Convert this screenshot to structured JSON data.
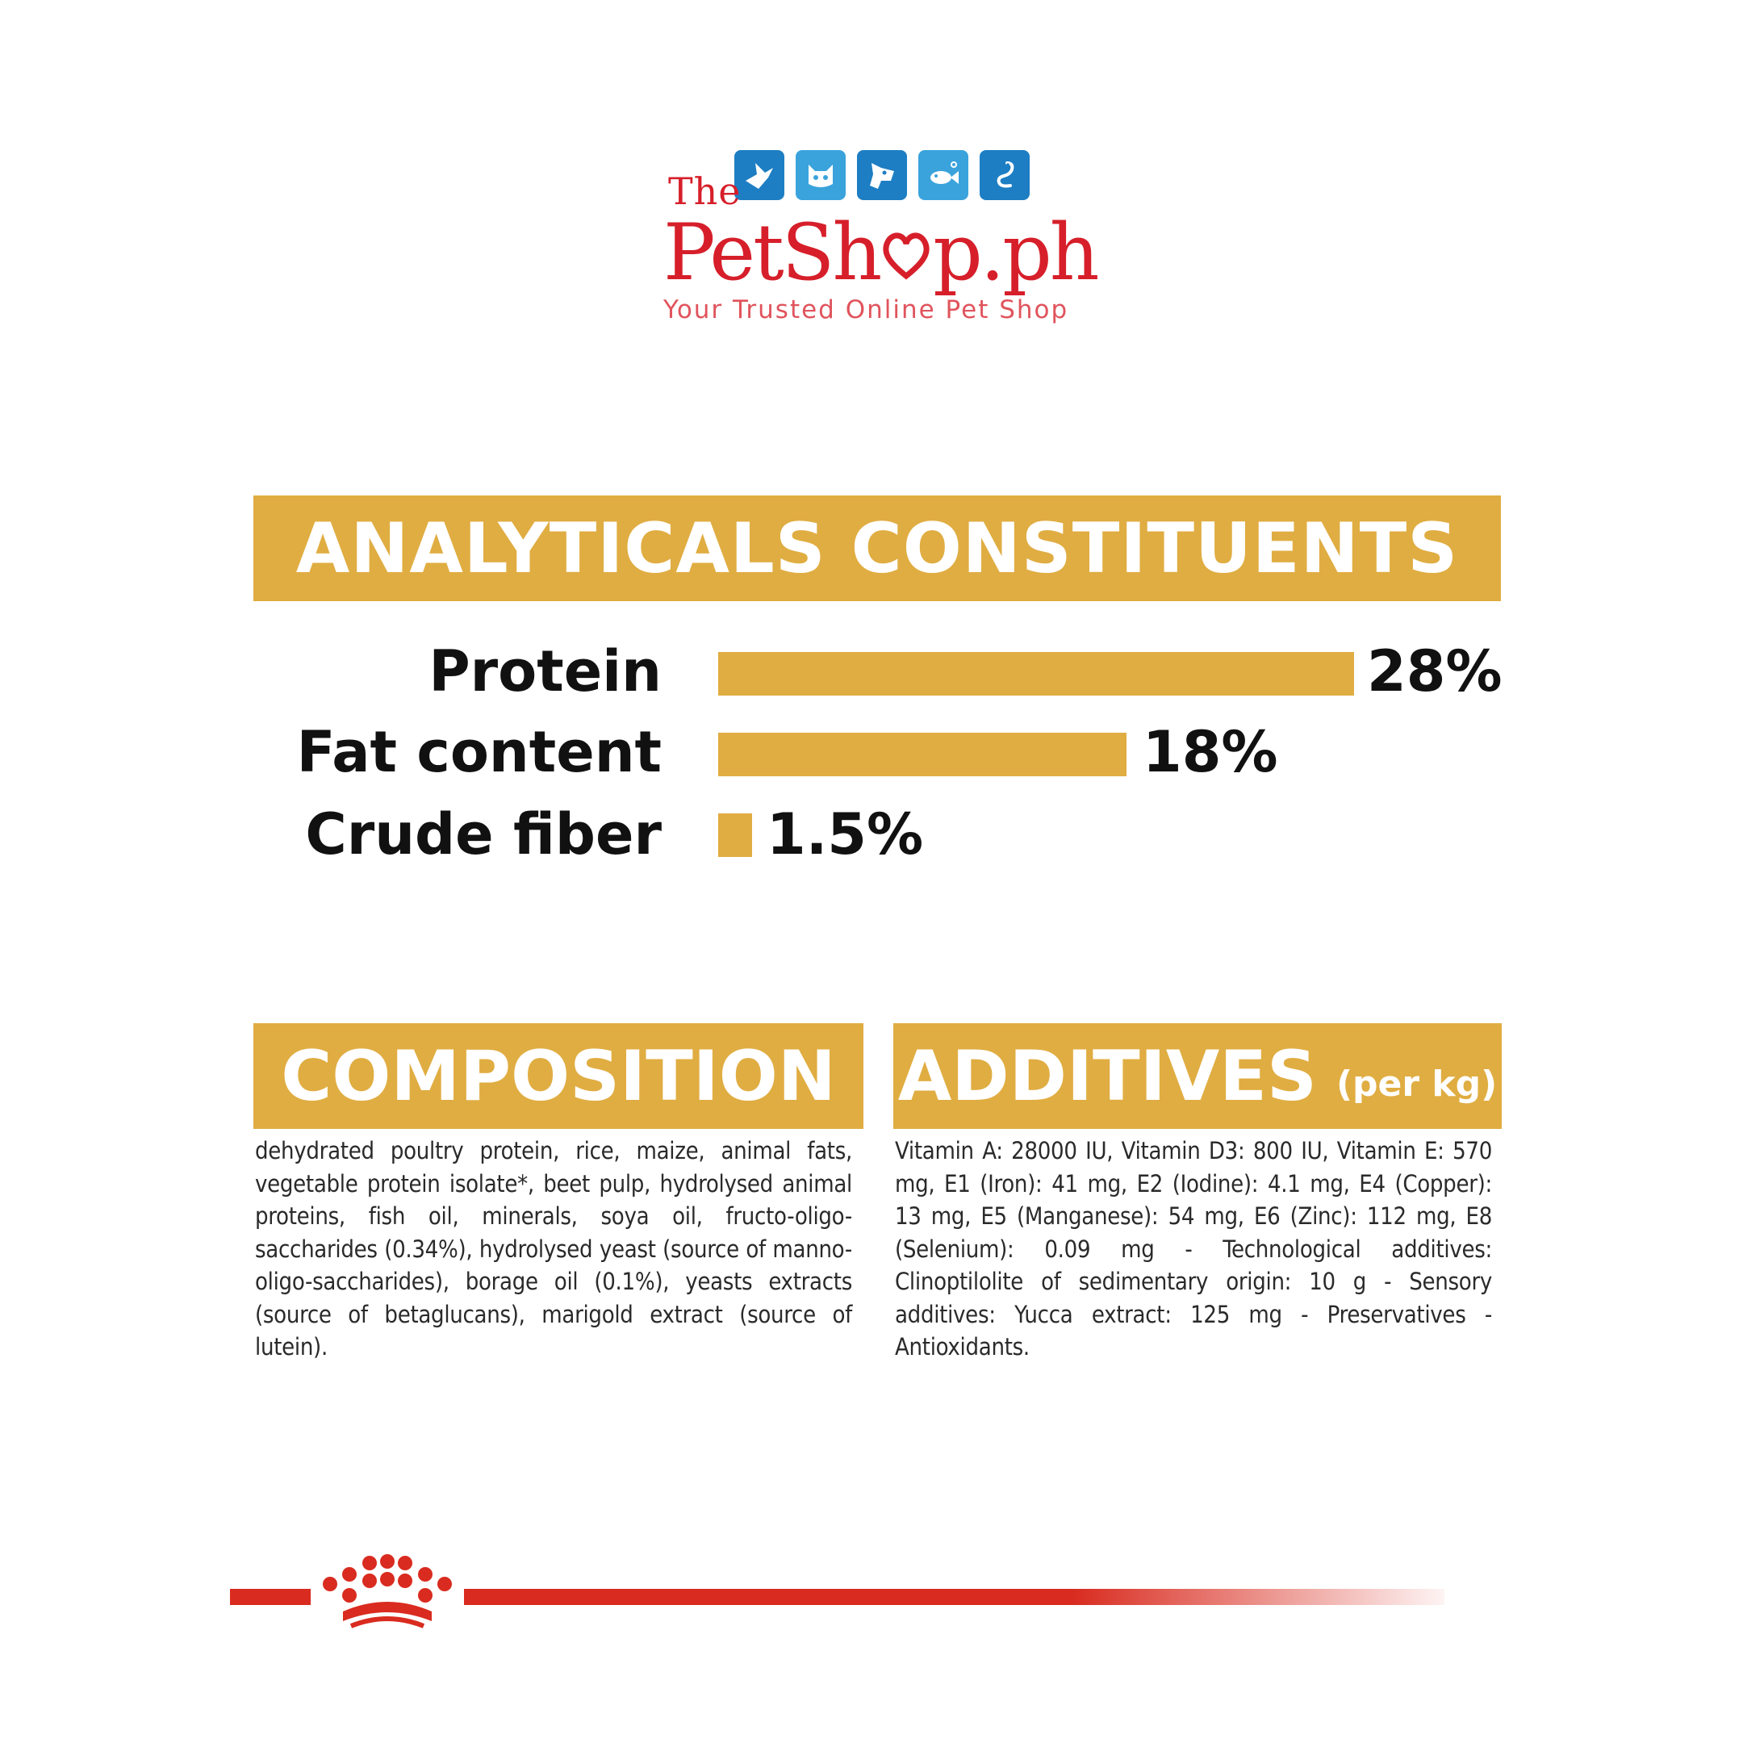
{
  "logo": {
    "prefix": "The",
    "name_part1": "PetSh",
    "name_part2": "p.ph",
    "tagline": "Your Trusted Online Pet Shop",
    "icons": [
      "bird-icon",
      "cat-icon",
      "dog-icon",
      "fish-icon",
      "snake-icon"
    ]
  },
  "analytical": {
    "title": "ANALYTICALS CONSTITUENTS",
    "rows": [
      {
        "label": "Protein",
        "value": "28%",
        "percent": 28
      },
      {
        "label": "Fat content",
        "value": "18%",
        "percent": 18
      },
      {
        "label": "Crude fiber",
        "value": "1.5%",
        "percent": 1.5
      }
    ]
  },
  "composition": {
    "title": "COMPOSITION",
    "text": "dehydrated poultry protein, rice, maize, animal fats, vegetable protein isolate*, beet pulp, hydrolysed animal proteins, fish oil, minerals, soya oil, fructo-oligo-saccharides (0.34%), hydrolysed yeast (source of manno-oligo-saccharides), borage oil (0.1%), yeasts extracts (source of betaglucans), marigold extract (source of lutein)."
  },
  "additives": {
    "title": "ADDITIVES",
    "subtitle": "(per kg)",
    "text": "Vitamin A: 28000 IU, Vitamin D3: 800 IU, Vitamin E: 570 mg, E1 (Iron): 41 mg, E2 (Iodine): 4.1 mg, E4 (Copper): 13 mg, E5 (Manganese): 54 mg, E6 (Zinc): 112 mg, E8 (Selenium): 0.09 mg - Technological additives: Clinoptilolite of sedimentary origin: 10 g - Sensory additives: Yucca extract: 125 mg - Preservatives - Antioxidants."
  },
  "colors": {
    "accent": "#e0ad42",
    "brand_red": "#d61f2a",
    "icon_blue": "#1d7ec3",
    "footer_red": "#d92b1f"
  }
}
